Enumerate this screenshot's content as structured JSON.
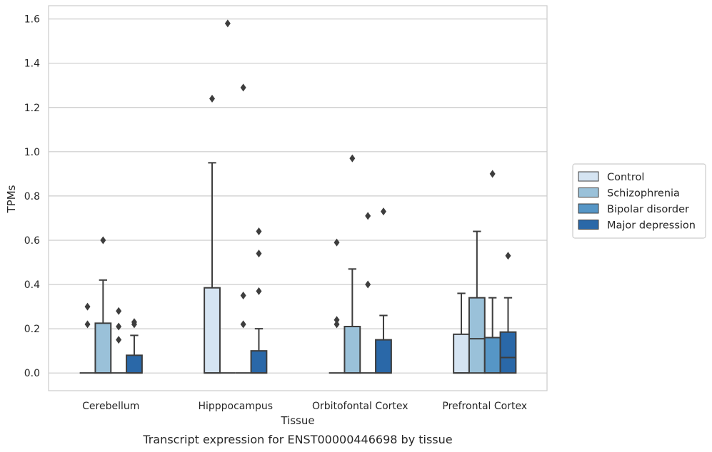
{
  "chart_data": {
    "type": "box",
    "caption": "Transcript expression for ENST00000446698 by tissue",
    "xlabel": "Tissue",
    "ylabel": "TPMs",
    "ylim": [
      -0.08,
      1.66
    ],
    "yticks": [
      0.0,
      0.2,
      0.4,
      0.6,
      0.8,
      1.0,
      1.2,
      1.4,
      1.6
    ],
    "ytick_labels": [
      "0.0",
      "0.2",
      "0.4",
      "0.6",
      "0.8",
      "1.0",
      "1.2",
      "1.4",
      "1.6"
    ],
    "grid": "horizontal",
    "legend_position": "right",
    "categories": [
      "Cerebellum",
      "Hipppocampus",
      "Orbitofontal Cortex",
      "Prefrontal Cortex"
    ],
    "series": [
      {
        "name": "Control",
        "color": "#d5e4f2",
        "boxes": [
          {
            "q1": 0,
            "median": 0,
            "q3": 0,
            "whisker_low": 0,
            "whisker_high": 0,
            "outliers": [
              0.22,
              0.3
            ]
          },
          {
            "q1": 0,
            "median": 0,
            "q3": 0.385,
            "whisker_low": 0,
            "whisker_high": 0.95,
            "outliers": [
              1.24
            ]
          },
          {
            "q1": 0,
            "median": 0,
            "q3": 0,
            "whisker_low": 0,
            "whisker_high": 0,
            "outliers": [
              0.22,
              0.24,
              0.59
            ]
          },
          {
            "q1": 0,
            "median": 0,
            "q3": 0.175,
            "whisker_low": 0,
            "whisker_high": 0.36,
            "outliers": []
          }
        ]
      },
      {
        "name": "Schizophrenia",
        "color": "#9ac1d9",
        "boxes": [
          {
            "q1": 0,
            "median": 0,
            "q3": 0.225,
            "whisker_low": 0,
            "whisker_high": 0.42,
            "outliers": [
              0.6
            ]
          },
          {
            "q1": 0,
            "median": 0,
            "q3": 0,
            "whisker_low": 0,
            "whisker_high": 0,
            "outliers": [
              1.58
            ]
          },
          {
            "q1": 0,
            "median": 0,
            "q3": 0.21,
            "whisker_low": 0,
            "whisker_high": 0.47,
            "outliers": [
              0.97
            ]
          },
          {
            "q1": 0,
            "median": 0.155,
            "q3": 0.34,
            "whisker_low": 0,
            "whisker_high": 0.64,
            "outliers": []
          }
        ]
      },
      {
        "name": "Bipolar disorder",
        "color": "#5696c6",
        "boxes": [
          {
            "q1": 0,
            "median": 0,
            "q3": 0,
            "whisker_low": 0,
            "whisker_high": 0,
            "outliers": [
              0.15,
              0.21,
              0.28
            ]
          },
          {
            "q1": 0,
            "median": 0,
            "q3": 0,
            "whisker_low": 0,
            "whisker_high": 0,
            "outliers": [
              0.22,
              0.35,
              1.29
            ]
          },
          {
            "q1": 0,
            "median": 0,
            "q3": 0,
            "whisker_low": 0,
            "whisker_high": 0,
            "outliers": [
              0.4,
              0.71
            ]
          },
          {
            "q1": 0,
            "median": 0,
            "q3": 0.16,
            "whisker_low": 0,
            "whisker_high": 0.34,
            "outliers": [
              0.9
            ]
          }
        ]
      },
      {
        "name": "Major depression",
        "color": "#2a68a8",
        "boxes": [
          {
            "q1": 0,
            "median": 0,
            "q3": 0.08,
            "whisker_low": 0,
            "whisker_high": 0.17,
            "outliers": [
              0.22,
              0.23
            ]
          },
          {
            "q1": 0,
            "median": 0,
            "q3": 0.1,
            "whisker_low": 0,
            "whisker_high": 0.2,
            "outliers": [
              0.37,
              0.54,
              0.64
            ]
          },
          {
            "q1": 0,
            "median": 0,
            "q3": 0.15,
            "whisker_low": 0,
            "whisker_high": 0.26,
            "outliers": [
              0.73
            ]
          },
          {
            "q1": 0,
            "median": 0.07,
            "q3": 0.185,
            "whisker_low": 0,
            "whisker_high": 0.34,
            "outliers": [
              0.53
            ]
          }
        ]
      }
    ]
  }
}
